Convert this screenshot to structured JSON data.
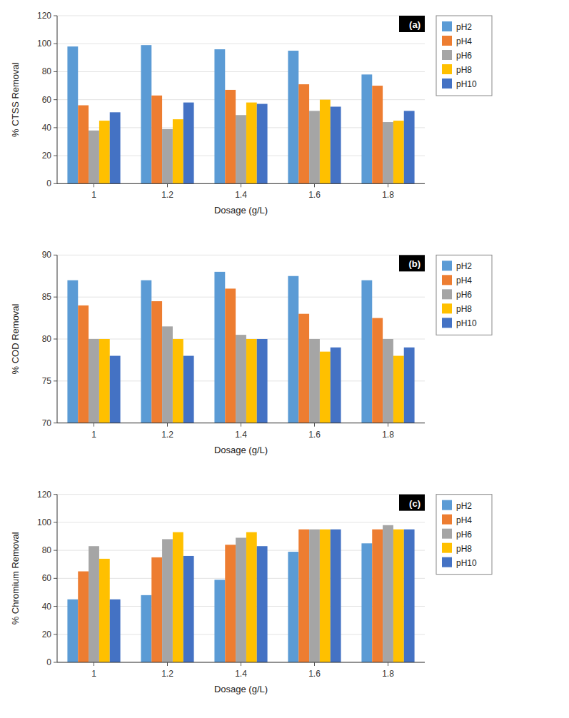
{
  "chart_data": [
    {
      "type": "bar",
      "title": "(a)",
      "x_label": "Dosage (g/L)",
      "y_label": "% CTSS Removal",
      "categories": [
        "1",
        "1.2",
        "1.4",
        "1.6",
        "1.8"
      ],
      "series": [
        {
          "name": "pH2",
          "color": "#5B9BD5",
          "values": [
            98,
            99,
            96,
            95,
            78
          ]
        },
        {
          "name": "pH4",
          "color": "#ED7D31",
          "values": [
            56,
            63,
            67,
            71,
            70
          ]
        },
        {
          "name": "pH6",
          "color": "#A5A5A5",
          "values": [
            38,
            39,
            49,
            52,
            44
          ]
        },
        {
          "name": "pH8",
          "color": "#FFC000",
          "values": [
            45,
            46,
            58,
            60,
            45
          ]
        },
        {
          "name": "pH10",
          "color": "#4472C4",
          "values": [
            51,
            58,
            57,
            55,
            52
          ]
        }
      ],
      "ylim": [
        0,
        120
      ],
      "yticks": [
        0,
        20,
        40,
        60,
        80,
        100,
        120
      ],
      "grid": true,
      "legend": "right"
    },
    {
      "type": "bar",
      "title": "(b)",
      "x_label": "Dosage (g/L)",
      "y_label": "% COD Removal",
      "categories": [
        "1",
        "1.2",
        "1.4",
        "1.6",
        "1.8"
      ],
      "series": [
        {
          "name": "pH2",
          "color": "#5B9BD5",
          "values": [
            87.0,
            87.0,
            88.0,
            87.5,
            87.0
          ]
        },
        {
          "name": "pH4",
          "color": "#ED7D31",
          "values": [
            84.0,
            84.5,
            86.0,
            83.0,
            82.5
          ]
        },
        {
          "name": "pH6",
          "color": "#A5A5A5",
          "values": [
            80.0,
            81.5,
            80.5,
            80.0,
            80.0
          ]
        },
        {
          "name": "pH8",
          "color": "#FFC000",
          "values": [
            80.0,
            80.0,
            80.0,
            78.5,
            78.0
          ]
        },
        {
          "name": "pH10",
          "color": "#4472C4",
          "values": [
            78.0,
            78.0,
            80.0,
            79.0,
            79.0
          ]
        }
      ],
      "ylim": [
        70,
        90
      ],
      "yticks": [
        70,
        75,
        80,
        85,
        90
      ],
      "grid": true,
      "legend": "right"
    },
    {
      "type": "bar",
      "title": "(c)",
      "x_label": "Dosage (g/L)",
      "y_label": "% Chromium Removal",
      "categories": [
        "1",
        "1.2",
        "1.4",
        "1.6",
        "1.8"
      ],
      "series": [
        {
          "name": "pH2",
          "color": "#5B9BD5",
          "values": [
            45,
            48,
            59,
            79,
            85
          ]
        },
        {
          "name": "pH4",
          "color": "#ED7D31",
          "values": [
            65,
            75,
            84,
            95,
            95
          ]
        },
        {
          "name": "pH6",
          "color": "#A5A5A5",
          "values": [
            83,
            88,
            89,
            95,
            98
          ]
        },
        {
          "name": "pH8",
          "color": "#FFC000",
          "values": [
            74,
            93,
            93,
            95,
            95
          ]
        },
        {
          "name": "pH10",
          "color": "#4472C4",
          "values": [
            45,
            76,
            83,
            95,
            95
          ]
        }
      ],
      "ylim": [
        0,
        120
      ],
      "yticks": [
        0,
        20,
        40,
        60,
        80,
        100,
        120
      ],
      "grid": true,
      "legend": "right"
    }
  ]
}
